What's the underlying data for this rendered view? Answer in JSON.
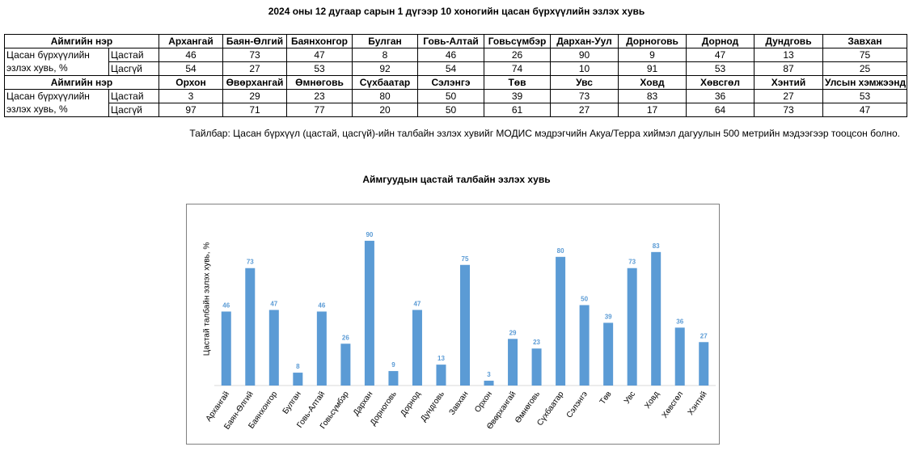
{
  "title": "2024 оны 12 дугаар сарын 1 дүгээр 10 хоногийн цасан бүрхүүлийн эзлэх хувь",
  "table": {
    "header_label": "Аймгийн нэр",
    "row_label_line1": "Цасан бүрхүүлийн",
    "row_label_line2": "эзлэх хувь, %",
    "sub_labels": [
      "Цастай",
      "Цасгүй"
    ],
    "block1": {
      "names": [
        "Архангай",
        "Баян-Өлгий",
        "Баянхонгор",
        "Булган",
        "Говь-Алтай",
        "Говьсүмбэр",
        "Дархан-Уул",
        "Дорноговь",
        "Дорнод",
        "Дундговь",
        "Завхан"
      ],
      "snow": [
        "46",
        "73",
        "47",
        "8",
        "46",
        "26",
        "90",
        "9",
        "47",
        "13",
        "75"
      ],
      "nosnow": [
        "54",
        "27",
        "53",
        "92",
        "54",
        "74",
        "10",
        "91",
        "53",
        "87",
        "25"
      ]
    },
    "block2": {
      "names": [
        "Орхон",
        "Өвөрхангай",
        "Өмнөговь",
        "Сүхбаатар",
        "Сэлэнгэ",
        "Төв",
        "Увс",
        "Ховд",
        "Хөвсгөл",
        "Хэнтий",
        "Улсын хэмжээнд"
      ],
      "snow": [
        "3",
        "29",
        "23",
        "80",
        "50",
        "39",
        "73",
        "83",
        "36",
        "27",
        "53"
      ],
      "nosnow": [
        "97",
        "71",
        "77",
        "20",
        "50",
        "61",
        "27",
        "17",
        "64",
        "73",
        "47"
      ]
    }
  },
  "note": "Тайлбар: Цасан бүрхүүл (цастай, цасгүй)-ийн талбайн эзлэх хувийг МОДИС мэдрэгчийн Акуа/Терра хиймэл дагуулын 500 метрийн мэдээгээр тооцсон болно.",
  "chart_data": {
    "type": "bar",
    "title": "Аймгуудын цастай талбайн эзлэх хувь",
    "ylabel": "Цастай талбайн эзлэх хувь, %",
    "xlabel": "",
    "categories": [
      "Архангай",
      "Баян-Өлгий",
      "Баянхонгор",
      "Булган",
      "Говь-Алтай",
      "Говьсүмбэр",
      "Дархан",
      "Дорноговь",
      "Дорнод",
      "Дундговь",
      "Завхан",
      "Орхон",
      "Өвөрхангай",
      "Өмнөговь",
      "Сүхбаатар",
      "Сэлэнгэ",
      "Төв",
      "Увс",
      "Ховд",
      "Хөвсгөл",
      "Хэнтий"
    ],
    "values": [
      46,
      73,
      47,
      8,
      46,
      26,
      90,
      9,
      47,
      13,
      75,
      3,
      29,
      23,
      80,
      50,
      39,
      73,
      83,
      36,
      27
    ],
    "ylim": [
      0,
      100
    ],
    "grid": false,
    "bar_color": "#5b9bd5",
    "label_color": "#5b9bd5"
  }
}
